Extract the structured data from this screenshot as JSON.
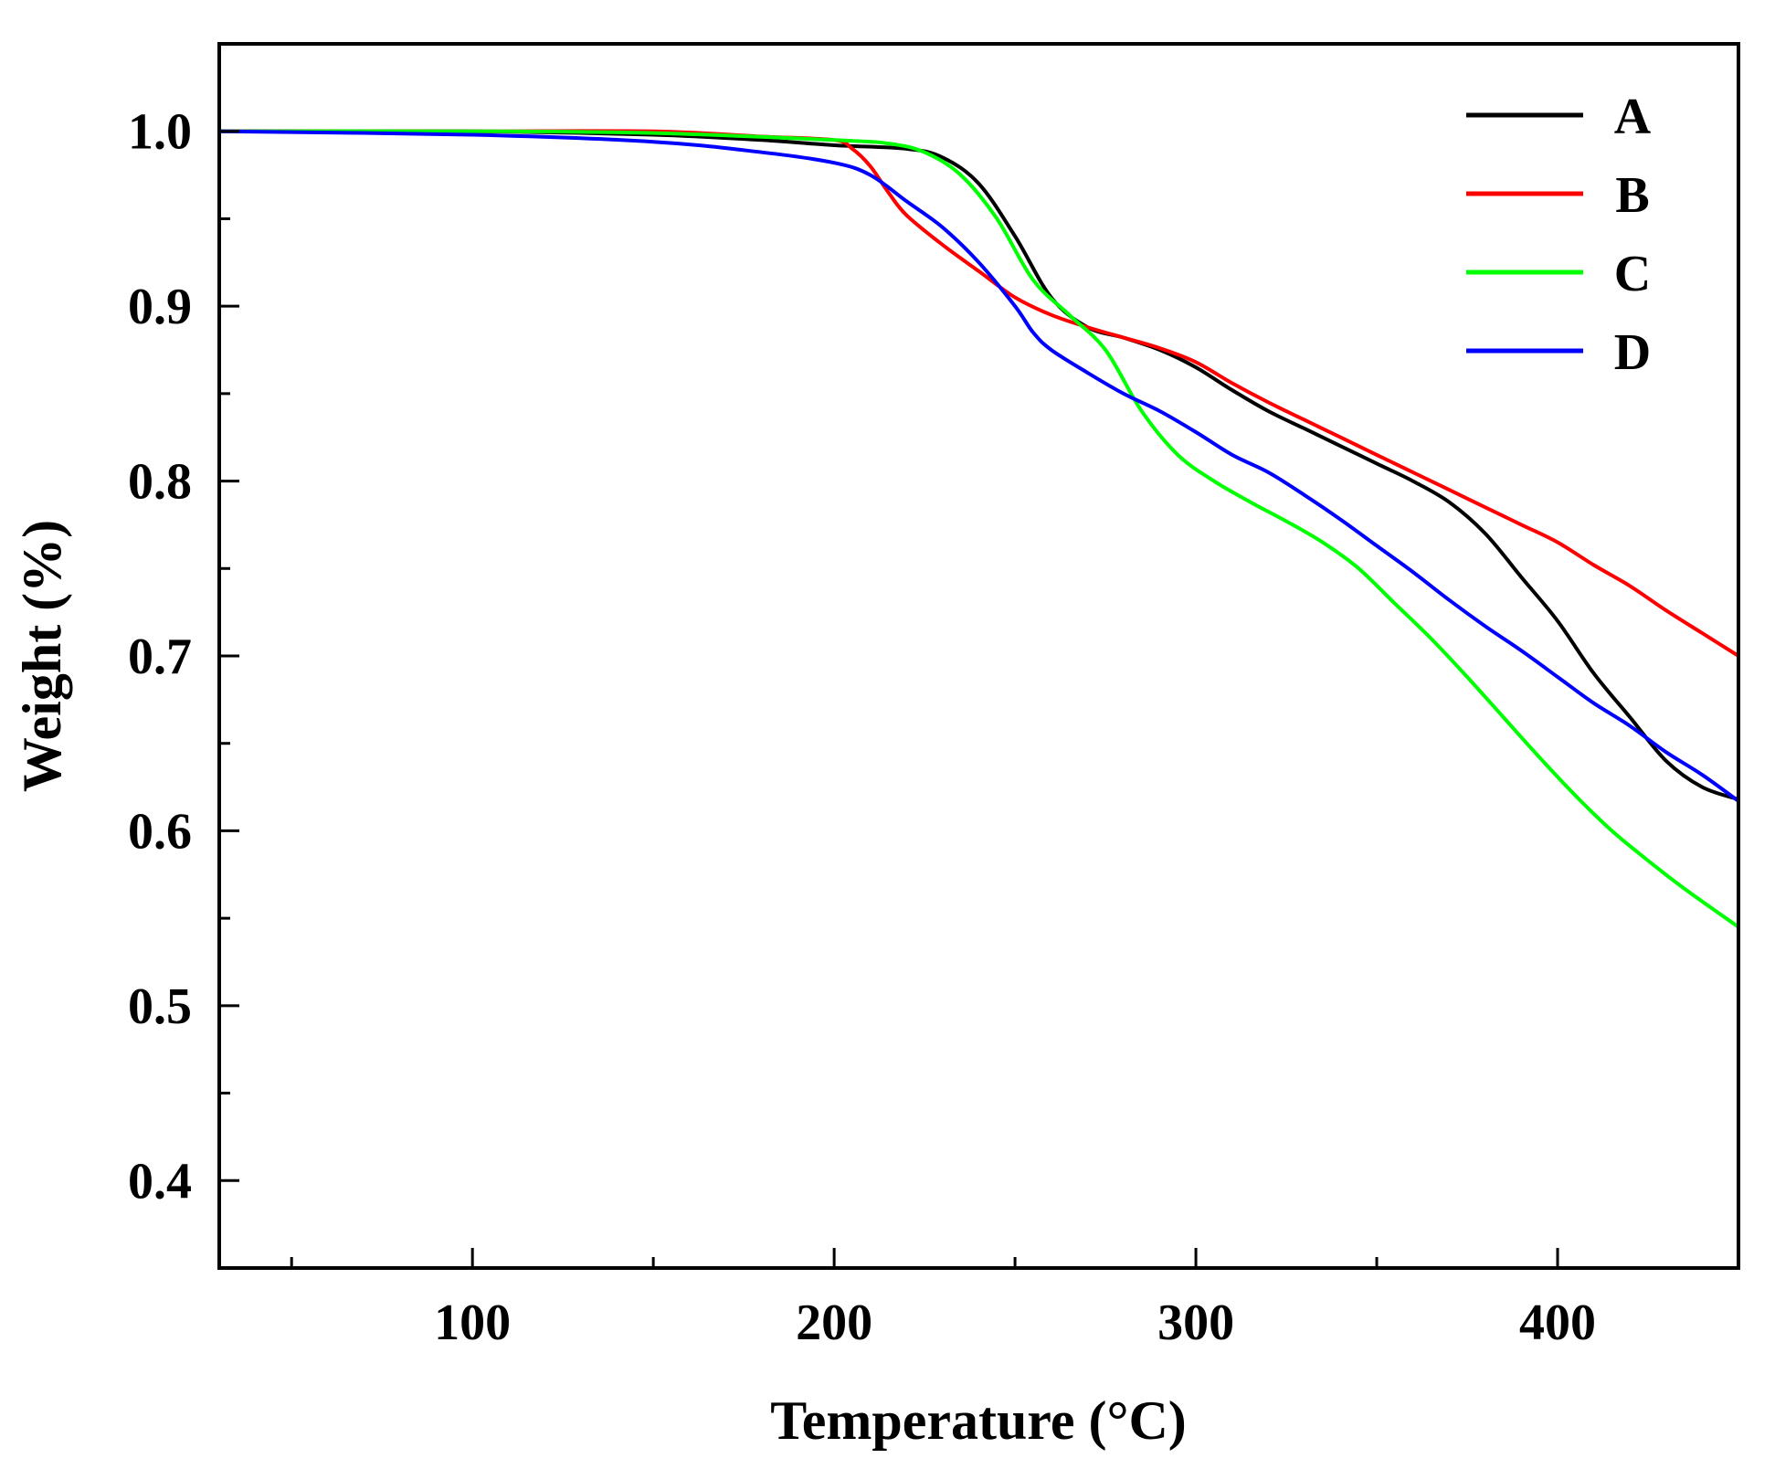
{
  "chart_data": {
    "type": "line",
    "title": "",
    "xlabel": "Temperature (°C)",
    "ylabel": "Weight (%)",
    "xlim": [
      30,
      450
    ],
    "ylim": [
      0.35,
      1.05
    ],
    "xticks": [
      100,
      200,
      300,
      400
    ],
    "xtick_labels": [
      "100",
      "200",
      "300",
      "400"
    ],
    "x_minor_ticks": [
      50,
      150,
      250,
      350
    ],
    "yticks": [
      0.4,
      0.5,
      0.6,
      0.7,
      0.8,
      0.9,
      1.0
    ],
    "ytick_labels": [
      "0.4",
      "0.5",
      "0.6",
      "0.7",
      "0.8",
      "0.9",
      "1.0"
    ],
    "y_minor_ticks": [
      0.45,
      0.55,
      0.65,
      0.75,
      0.85,
      0.95
    ],
    "grid": false,
    "legend_position": "top-right",
    "series": [
      {
        "name": "A",
        "color": "#000000",
        "x": [
          30,
          100,
          150,
          180,
          200,
          220,
          230,
          240,
          250,
          260,
          270,
          280,
          290,
          300,
          310,
          320,
          330,
          340,
          350,
          360,
          370,
          380,
          390,
          400,
          410,
          420,
          430,
          440,
          450
        ],
        "y": [
          1.0,
          1.0,
          0.998,
          0.995,
          0.992,
          0.99,
          0.985,
          0.97,
          0.94,
          0.905,
          0.888,
          0.882,
          0.875,
          0.865,
          0.852,
          0.84,
          0.83,
          0.82,
          0.81,
          0.8,
          0.788,
          0.77,
          0.745,
          0.72,
          0.69,
          0.665,
          0.64,
          0.625,
          0.618
        ]
      },
      {
        "name": "B",
        "color": "#ff0000",
        "x": [
          30,
          100,
          150,
          180,
          200,
          205,
          210,
          215,
          220,
          230,
          240,
          250,
          260,
          270,
          280,
          290,
          300,
          310,
          320,
          330,
          340,
          350,
          360,
          370,
          380,
          390,
          400,
          410,
          420,
          430,
          440,
          450
        ],
        "y": [
          1.0,
          1.0,
          1.0,
          0.997,
          0.995,
          0.99,
          0.98,
          0.965,
          0.952,
          0.935,
          0.92,
          0.905,
          0.895,
          0.888,
          0.882,
          0.876,
          0.868,
          0.856,
          0.845,
          0.835,
          0.825,
          0.815,
          0.805,
          0.795,
          0.785,
          0.775,
          0.765,
          0.752,
          0.74,
          0.726,
          0.713,
          0.7
        ]
      },
      {
        "name": "C",
        "color": "#00ff00",
        "x": [
          30,
          100,
          150,
          200,
          215,
          225,
          235,
          245,
          255,
          265,
          275,
          285,
          295,
          305,
          315,
          325,
          335,
          345,
          355,
          365,
          375,
          385,
          395,
          405,
          415,
          425,
          435,
          450
        ],
        "y": [
          1.0,
          1.0,
          0.999,
          0.995,
          0.993,
          0.988,
          0.975,
          0.95,
          0.915,
          0.895,
          0.875,
          0.84,
          0.815,
          0.8,
          0.788,
          0.777,
          0.765,
          0.75,
          0.73,
          0.71,
          0.688,
          0.665,
          0.642,
          0.62,
          0.6,
          0.583,
          0.567,
          0.545
        ]
      },
      {
        "name": "D",
        "color": "#0000ff",
        "x": [
          30,
          100,
          150,
          180,
          200,
          210,
          220,
          230,
          240,
          250,
          255,
          260,
          270,
          280,
          290,
          300,
          310,
          320,
          330,
          340,
          350,
          360,
          370,
          380,
          390,
          400,
          410,
          420,
          430,
          440,
          450
        ],
        "y": [
          1.0,
          0.998,
          0.994,
          0.988,
          0.982,
          0.975,
          0.96,
          0.945,
          0.925,
          0.9,
          0.885,
          0.875,
          0.862,
          0.85,
          0.84,
          0.828,
          0.815,
          0.805,
          0.792,
          0.778,
          0.763,
          0.748,
          0.732,
          0.717,
          0.703,
          0.688,
          0.673,
          0.66,
          0.645,
          0.632,
          0.617
        ]
      }
    ]
  }
}
